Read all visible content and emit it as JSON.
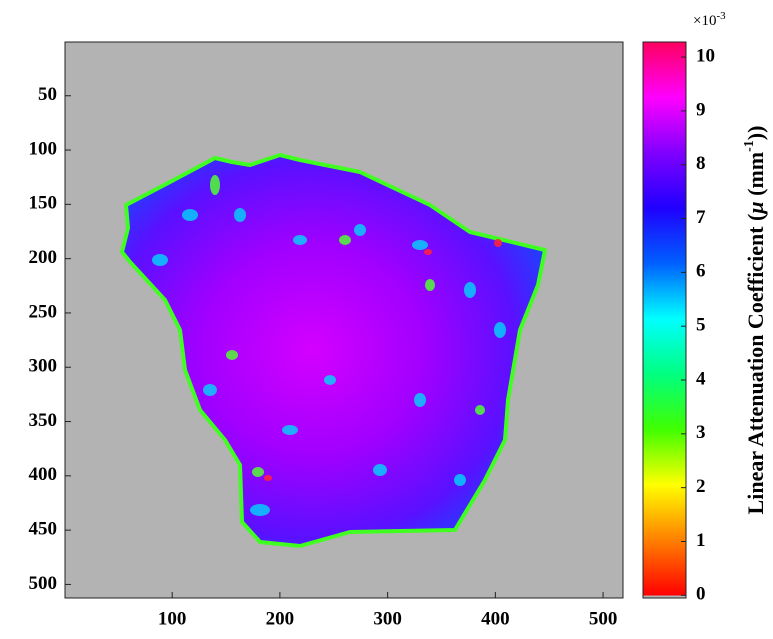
{
  "chart_data": {
    "type": "heatmap",
    "xlim": [
      0.5,
      518.5
    ],
    "xticks": [
      100,
      200,
      300,
      400,
      500
    ],
    "ylim": [
      0.5,
      512.5
    ],
    "yticks": [
      50,
      100,
      150,
      200,
      250,
      300,
      350,
      400,
      450,
      500
    ],
    "y_reversed": true,
    "background_color": "#b3b3b3",
    "colorbar": {
      "clim": [
        -0.05,
        10.28
      ],
      "ticks": [
        0,
        1,
        2,
        3,
        4,
        5,
        6,
        7,
        8,
        9,
        10
      ],
      "colormap": [
        "#ff0000",
        "#ff8000",
        "#ffff00",
        "#40ff00",
        "#00ff80",
        "#00ffff",
        "#0060ff",
        "#2000ff",
        "#8000ff",
        "#ff00ff",
        "#ff0060"
      ],
      "multiplier": "×10",
      "exponent": "-3",
      "label": [
        "Linear Attenuation Coefficient (",
        "μ",
        " (mm",
        "-1",
        "))"
      ]
    }
  }
}
